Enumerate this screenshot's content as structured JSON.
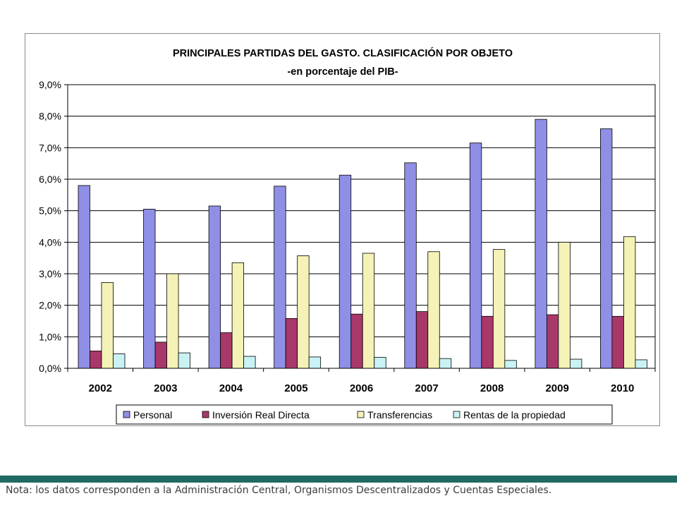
{
  "colors": {
    "personal": "#8f8fe6",
    "inversion": "#a8386a",
    "transferencias": "#f4f2b6",
    "rentas": "#c9f2f4",
    "accent_bar": "#1f6b63"
  },
  "chart_data": {
    "type": "bar",
    "title": "PRINCIPALES PARTIDAS DEL GASTO. CLASIFICACIÓN POR OBJETO",
    "subtitle": "-en porcentaje del PIB-",
    "xlabel": "",
    "ylabel": "",
    "ylim": [
      0,
      9
    ],
    "y_ticks": [
      "0,0%",
      "1,0%",
      "2,0%",
      "3,0%",
      "4,0%",
      "5,0%",
      "6,0%",
      "7,0%",
      "8,0%",
      "9,0%"
    ],
    "grid": true,
    "legend_position": "bottom",
    "categories": [
      "2002",
      "2003",
      "2004",
      "2005",
      "2006",
      "2007",
      "2008",
      "2009",
      "2010"
    ],
    "series": [
      {
        "name": "Personal",
        "color": "#8f8fe6",
        "values": [
          5.8,
          5.05,
          5.15,
          5.78,
          6.13,
          6.52,
          7.15,
          7.9,
          7.6
        ]
      },
      {
        "name": "Inversión Real Directa",
        "color": "#a8386a",
        "values": [
          0.55,
          0.83,
          1.13,
          1.58,
          1.72,
          1.8,
          1.65,
          1.7,
          1.65
        ]
      },
      {
        "name": "Transferencias",
        "color": "#f4f2b6",
        "values": [
          2.72,
          3.0,
          3.35,
          3.57,
          3.65,
          3.7,
          3.77,
          4.0,
          4.18
        ]
      },
      {
        "name": "Rentas de la propiedad",
        "color": "#c9f2f4",
        "values": [
          0.46,
          0.49,
          0.38,
          0.36,
          0.35,
          0.31,
          0.25,
          0.29,
          0.27
        ]
      }
    ]
  },
  "footer": {
    "note": "Nota: los datos corresponden a la Administración Central, Organismos Descentralizados y Cuentas Especiales."
  }
}
